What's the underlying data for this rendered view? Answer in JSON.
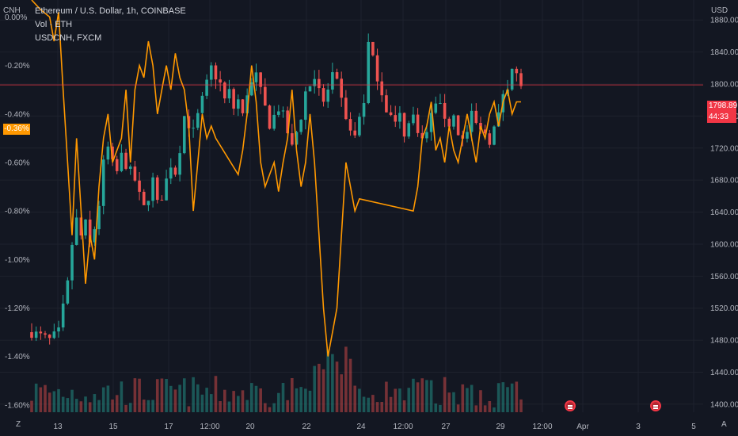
{
  "header": {
    "title": "Ethereum / U.S. Dollar, 1h, COINBASE",
    "indicator": "Vol · ETH",
    "compare": "USDCNH, FXCM"
  },
  "axes": {
    "left_unit": "CNH",
    "right_unit": "USD",
    "corner_left": "Z",
    "corner_right": "A"
  },
  "badges": {
    "price": "1798.89",
    "countdown": "44:33",
    "percent": "-0.36%"
  },
  "colors": {
    "background": "#131722",
    "candle_up": "#26a69a",
    "candle_down": "#ef5350",
    "compare_line": "#ff9800",
    "price_line": "#f23645"
  },
  "chart_data": {
    "type": "candlestick+line+volume",
    "right_axis": {
      "unit": "USD",
      "range": [
        1390,
        1905
      ],
      "ticks": [
        "1880.00",
        "1840.00",
        "1800.00",
        "1760.00",
        "1720.00",
        "1680.00",
        "1640.00",
        "1600.00",
        "1560.00",
        "1520.00",
        "1480.00",
        "1440.00",
        "1400.00"
      ]
    },
    "left_axis": {
      "unit": "CNH",
      "range": [
        -1.63,
        0.07
      ],
      "ticks": [
        "0.00%",
        "-0.20%",
        "-0.40%",
        "-0.60%",
        "-0.80%",
        "-1.00%",
        "-1.20%",
        "-1.40%",
        "-1.60%"
      ]
    },
    "x_ticks": [
      "13",
      "15",
      "17",
      "12:00",
      "20",
      "22",
      "24",
      "12:00",
      "27",
      "29",
      "12:00",
      "Apr",
      "3",
      "5"
    ],
    "last_price": 1798.89,
    "eth_close_path": [
      [
        0,
        1490
      ],
      [
        2,
        1485
      ],
      [
        4,
        1480
      ],
      [
        6,
        1490
      ],
      [
        7,
        1520
      ],
      [
        8,
        1550
      ],
      [
        9,
        1600
      ],
      [
        10,
        1630
      ],
      [
        11,
        1610
      ],
      [
        12,
        1625
      ],
      [
        13,
        1600
      ],
      [
        14,
        1620
      ],
      [
        15,
        1650
      ],
      [
        16,
        1700
      ],
      [
        17,
        1720
      ],
      [
        18,
        1700
      ],
      [
        19,
        1690
      ],
      [
        20,
        1710
      ],
      [
        21,
        1700
      ],
      [
        22,
        1690
      ],
      [
        23,
        1680
      ],
      [
        24,
        1660
      ],
      [
        25,
        1645
      ],
      [
        26,
        1660
      ],
      [
        27,
        1680
      ],
      [
        28,
        1650
      ],
      [
        29,
        1660
      ],
      [
        30,
        1680
      ],
      [
        31,
        1700
      ],
      [
        32,
        1690
      ],
      [
        33,
        1720
      ],
      [
        34,
        1760
      ],
      [
        35,
        1750
      ],
      [
        36,
        1740
      ],
      [
        37,
        1760
      ],
      [
        38,
        1780
      ],
      [
        39,
        1800
      ],
      [
        40,
        1820
      ],
      [
        41,
        1810
      ],
      [
        42,
        1800
      ],
      [
        43,
        1780
      ],
      [
        44,
        1790
      ],
      [
        45,
        1770
      ],
      [
        46,
        1780
      ],
      [
        47,
        1760
      ],
      [
        48,
        1790
      ],
      [
        49,
        1800
      ],
      [
        50,
        1810
      ],
      [
        51,
        1790
      ],
      [
        52,
        1770
      ],
      [
        53,
        1750
      ],
      [
        54,
        1760
      ],
      [
        55,
        1770
      ],
      [
        56,
        1760
      ],
      [
        57,
        1740
      ],
      [
        58,
        1720
      ],
      [
        59,
        1740
      ],
      [
        60,
        1760
      ],
      [
        61,
        1790
      ],
      [
        62,
        1800
      ],
      [
        63,
        1810
      ],
      [
        64,
        1790
      ],
      [
        65,
        1780
      ],
      [
        66,
        1790
      ],
      [
        67,
        1810
      ],
      [
        68,
        1800
      ],
      [
        69,
        1780
      ],
      [
        70,
        1760
      ],
      [
        71,
        1740
      ],
      [
        72,
        1735
      ],
      [
        73,
        1760
      ],
      [
        74,
        1780
      ],
      [
        75,
        1850
      ],
      [
        76,
        1830
      ],
      [
        77,
        1810
      ],
      [
        78,
        1790
      ],
      [
        79,
        1770
      ],
      [
        80,
        1760
      ],
      [
        81,
        1750
      ],
      [
        82,
        1760
      ],
      [
        83,
        1740
      ],
      [
        84,
        1750
      ],
      [
        85,
        1760
      ],
      [
        86,
        1745
      ],
      [
        87,
        1730
      ],
      [
        88,
        1740
      ],
      [
        89,
        1760
      ],
      [
        90,
        1780
      ],
      [
        91,
        1770
      ],
      [
        92,
        1760
      ],
      [
        93,
        1750
      ],
      [
        94,
        1760
      ],
      [
        95,
        1740
      ],
      [
        96,
        1730
      ],
      [
        97,
        1740
      ],
      [
        98,
        1760
      ],
      [
        99,
        1750
      ],
      [
        100,
        1740
      ],
      [
        101,
        1740
      ],
      [
        102,
        1730
      ],
      [
        103,
        1745
      ],
      [
        104,
        1760
      ],
      [
        105,
        1790
      ],
      [
        106,
        1800
      ],
      [
        107,
        1820
      ],
      [
        108,
        1810
      ],
      [
        109,
        1800
      ]
    ],
    "usdcnh_path": [
      [
        0,
        0.07
      ],
      [
        2,
        0.03
      ],
      [
        4,
        0.0
      ],
      [
        5,
        -0.1
      ],
      [
        6,
        0.02
      ],
      [
        7,
        -0.3
      ],
      [
        8,
        -0.6
      ],
      [
        9,
        -0.9
      ],
      [
        10,
        -0.5
      ],
      [
        11,
        -0.8
      ],
      [
        12,
        -1.1
      ],
      [
        13,
        -0.9
      ],
      [
        14,
        -1.0
      ],
      [
        15,
        -0.7
      ],
      [
        16,
        -0.5
      ],
      [
        17,
        -0.4
      ],
      [
        18,
        -0.6
      ],
      [
        19,
        -0.55
      ],
      [
        20,
        -0.5
      ],
      [
        21,
        -0.3
      ],
      [
        22,
        -0.6
      ],
      [
        23,
        -0.3
      ],
      [
        24,
        -0.2
      ],
      [
        25,
        -0.25
      ],
      [
        26,
        -0.1
      ],
      [
        27,
        -0.2
      ],
      [
        28,
        -0.4
      ],
      [
        29,
        -0.3
      ],
      [
        30,
        -0.2
      ],
      [
        31,
        -0.3
      ],
      [
        32,
        -0.15
      ],
      [
        33,
        -0.25
      ],
      [
        34,
        -0.3
      ],
      [
        35,
        -0.45
      ],
      [
        36,
        -0.8
      ],
      [
        37,
        -0.6
      ],
      [
        38,
        -0.4
      ],
      [
        39,
        -0.5
      ],
      [
        40,
        -0.45
      ],
      [
        41,
        -0.5
      ],
      [
        46,
        -0.65
      ],
      [
        47,
        -0.55
      ],
      [
        48,
        -0.4
      ],
      [
        49,
        -0.2
      ],
      [
        50,
        -0.35
      ],
      [
        51,
        -0.6
      ],
      [
        52,
        -0.7
      ],
      [
        53,
        -0.65
      ],
      [
        54,
        -0.6
      ],
      [
        55,
        -0.72
      ],
      [
        56,
        -0.6
      ],
      [
        57,
        -0.5
      ],
      [
        58,
        -0.3
      ],
      [
        59,
        -0.55
      ],
      [
        60,
        -0.7
      ],
      [
        61,
        -0.6
      ],
      [
        62,
        -0.4
      ],
      [
        63,
        -0.6
      ],
      [
        64,
        -0.9
      ],
      [
        65,
        -1.2
      ],
      [
        66,
        -1.4
      ],
      [
        67,
        -1.3
      ],
      [
        68,
        -1.2
      ],
      [
        69,
        -0.9
      ],
      [
        70,
        -0.6
      ],
      [
        71,
        -0.7
      ],
      [
        72,
        -0.8
      ],
      [
        73,
        -0.75
      ],
      [
        85,
        -0.8
      ],
      [
        86,
        -0.7
      ],
      [
        87,
        -0.5
      ],
      [
        88,
        -0.45
      ],
      [
        89,
        -0.35
      ],
      [
        90,
        -0.55
      ],
      [
        91,
        -0.5
      ],
      [
        92,
        -0.6
      ],
      [
        93,
        -0.45
      ],
      [
        94,
        -0.55
      ],
      [
        95,
        -0.6
      ],
      [
        96,
        -0.5
      ],
      [
        97,
        -0.4
      ],
      [
        98,
        -0.5
      ],
      [
        99,
        -0.6
      ],
      [
        100,
        -0.45
      ],
      [
        101,
        -0.5
      ],
      [
        102,
        -0.4
      ],
      [
        103,
        -0.35
      ],
      [
        104,
        -0.45
      ],
      [
        105,
        -0.35
      ],
      [
        106,
        -0.3
      ],
      [
        107,
        -0.4
      ],
      [
        108,
        -0.35
      ],
      [
        109,
        -0.35
      ]
    ]
  }
}
